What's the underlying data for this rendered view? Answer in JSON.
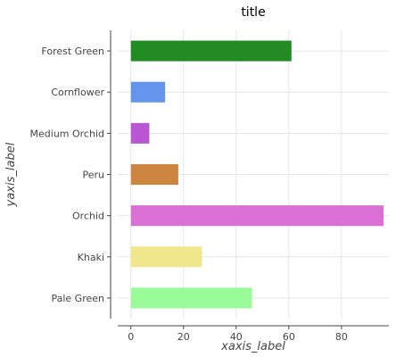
{
  "chart_data": {
    "type": "bar",
    "orientation": "horizontal",
    "title": "title",
    "xlabel": "xaxis_label",
    "ylabel": "yaxis_label",
    "xlim": [
      -5,
      98
    ],
    "xticks": [
      0,
      20,
      40,
      60,
      80
    ],
    "grid": true,
    "categories": [
      "Pale Green",
      "Khaki",
      "Orchid",
      "Peru",
      "Medium Orchid",
      "Cornflower",
      "Forest Green"
    ],
    "values": [
      46,
      27,
      96,
      18,
      7,
      13,
      61
    ],
    "colors": [
      "#98fb98",
      "#f0e68c",
      "#da70d6",
      "#cd853f",
      "#ba55d3",
      "#6495ed",
      "#228b22"
    ]
  }
}
